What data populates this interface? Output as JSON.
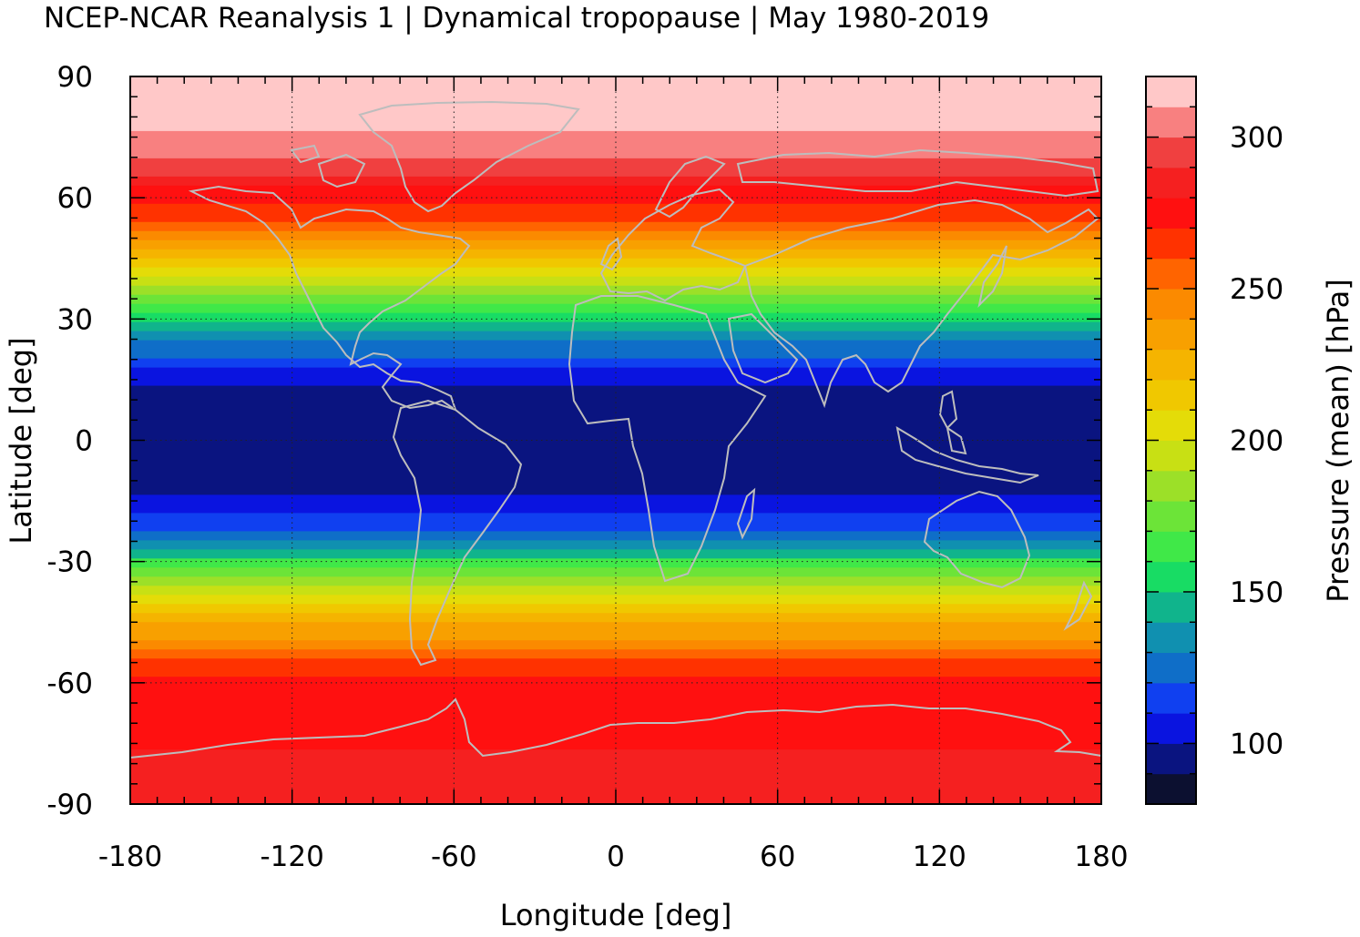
{
  "chart_data": {
    "type": "heatmap",
    "title": "NCEP-NCAR Reanalysis 1 | Dynamical tropopause | May 1980-2019",
    "xlabel": "Longitude [deg]",
    "ylabel": "Latitude [deg]",
    "colorbar_label": "Pressure (mean) [hPa]",
    "xlim": [
      -180,
      180
    ],
    "ylim": [
      -90,
      90
    ],
    "xticks": [
      "-180",
      "-120",
      "-60",
      "0",
      "60",
      "120",
      "180"
    ],
    "yticks": [
      "90",
      "60",
      "30",
      "0",
      "-30",
      "-60",
      "-90"
    ],
    "colorbar_ticks": [
      "300",
      "250",
      "200",
      "150",
      "100"
    ],
    "colorbar_range": [
      80,
      320
    ],
    "colorbar_levels": [
      {
        "from": 80,
        "to": 90,
        "color": "#0c1030"
      },
      {
        "from": 90,
        "to": 100,
        "color": "#0a1480"
      },
      {
        "from": 100,
        "to": 110,
        "color": "#0a14e0"
      },
      {
        "from": 110,
        "to": 120,
        "color": "#1040f0"
      },
      {
        "from": 120,
        "to": 130,
        "color": "#0f6ec8"
      },
      {
        "from": 130,
        "to": 140,
        "color": "#1090b0"
      },
      {
        "from": 140,
        "to": 150,
        "color": "#10b48c"
      },
      {
        "from": 150,
        "to": 160,
        "color": "#18dc64"
      },
      {
        "from": 160,
        "to": 170,
        "color": "#40e848"
      },
      {
        "from": 170,
        "to": 180,
        "color": "#6ce438"
      },
      {
        "from": 180,
        "to": 190,
        "color": "#9ce028"
      },
      {
        "from": 190,
        "to": 200,
        "color": "#c8e014"
      },
      {
        "from": 200,
        "to": 210,
        "color": "#e4dc08"
      },
      {
        "from": 210,
        "to": 220,
        "color": "#f0c800"
      },
      {
        "from": 220,
        "to": 230,
        "color": "#f5b400"
      },
      {
        "from": 230,
        "to": 240,
        "color": "#f8a000"
      },
      {
        "from": 240,
        "to": 250,
        "color": "#fb8a00"
      },
      {
        "from": 250,
        "to": 260,
        "color": "#ff6400"
      },
      {
        "from": 260,
        "to": 270,
        "color": "#ff3200"
      },
      {
        "from": 270,
        "to": 280,
        "color": "#ff1010"
      },
      {
        "from": 280,
        "to": 290,
        "color": "#f52020"
      },
      {
        "from": 290,
        "to": 300,
        "color": "#f04040"
      },
      {
        "from": 300,
        "to": 310,
        "color": "#f88080"
      },
      {
        "from": 310,
        "to": 320,
        "color": "#ffc8c8"
      }
    ],
    "zonal_mean_pressure": {
      "latitude": [
        90,
        80,
        72,
        66,
        60,
        54,
        48,
        42,
        36,
        30,
        24,
        18,
        12,
        6,
        0,
        -6,
        -12,
        -18,
        -24,
        -30,
        -36,
        -42,
        -48,
        -54,
        -60,
        -66,
        -72,
        -78,
        -84,
        -90
      ],
      "pressure_hPa": [
        316,
        314,
        305,
        290,
        275,
        262,
        238,
        210,
        185,
        158,
        130,
        108,
        98,
        92,
        90,
        92,
        97,
        108,
        128,
        158,
        195,
        220,
        238,
        260,
        275,
        278,
        278,
        281,
        282,
        283
      ]
    },
    "grid": true,
    "colorbar_placement": "right",
    "overlay": "coastlines",
    "coastline_color": "#bdbdbd"
  }
}
